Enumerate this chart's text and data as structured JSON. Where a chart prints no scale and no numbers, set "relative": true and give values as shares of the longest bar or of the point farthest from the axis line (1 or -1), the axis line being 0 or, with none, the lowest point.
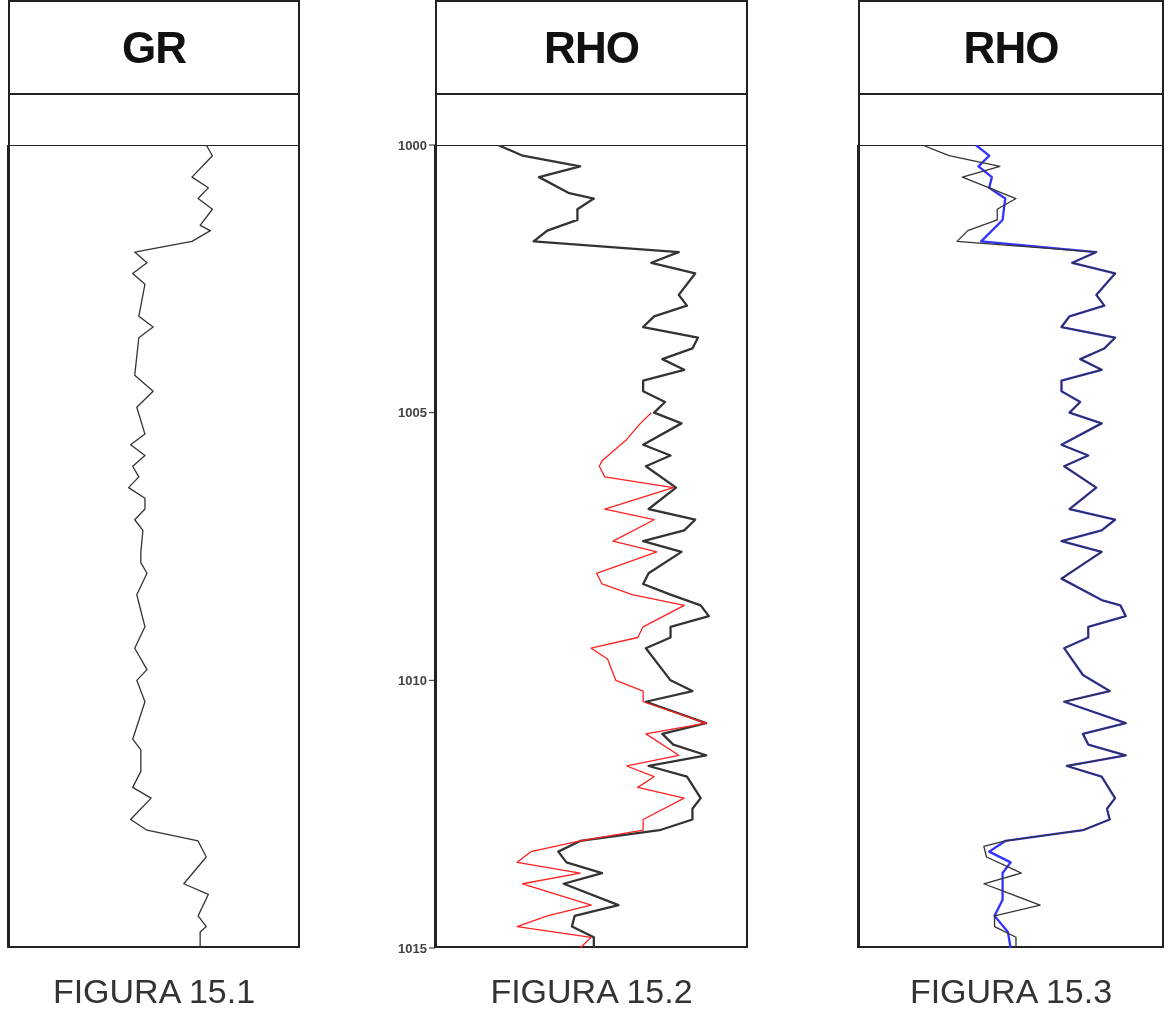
{
  "chart_data": [
    {
      "type": "line",
      "title": "GR",
      "annotations": [
        "FIGURA 15.1"
      ],
      "orientation": "horizontal",
      "relative": true,
      "ylim": [
        1015,
        1000
      ],
      "tick_labels": false,
      "series": [
        {
          "color": "#333333",
          "x": [
            1000.0,
            1000.2,
            1000.6,
            1000.8,
            1001.0,
            1001.2,
            1001.5,
            1001.6,
            1001.8,
            1002.0,
            1002.2,
            1002.4,
            1002.6,
            1003.2,
            1003.4,
            1003.6,
            1004.3,
            1004.6,
            1004.9,
            1005.4,
            1005.6,
            1005.8,
            1006.0,
            1006.2,
            1006.4,
            1006.6,
            1006.8,
            1007.0,
            1007.2,
            1007.6,
            1007.8,
            1008.0,
            1008.4,
            1008.7,
            1009.0,
            1009.4,
            1009.8,
            1010.0,
            1010.4,
            1011.1,
            1011.3,
            1011.7,
            1012.0,
            1012.2,
            1012.6,
            1012.8,
            1013.0,
            1013.3,
            1013.8,
            1014.0,
            1014.4,
            1014.6,
            1014.7,
            1015.0
          ],
          "values": [
            0.97,
            1.0,
            0.9,
            0.98,
            0.93,
            1.0,
            0.94,
            0.99,
            0.9,
            0.62,
            0.68,
            0.61,
            0.67,
            0.64,
            0.71,
            0.64,
            0.62,
            0.71,
            0.63,
            0.67,
            0.6,
            0.67,
            0.61,
            0.64,
            0.59,
            0.67,
            0.67,
            0.62,
            0.66,
            0.65,
            0.65,
            0.68,
            0.63,
            0.65,
            0.67,
            0.62,
            0.68,
            0.63,
            0.67,
            0.61,
            0.65,
            0.65,
            0.61,
            0.7,
            0.6,
            0.68,
            0.93,
            0.97,
            0.86,
            0.98,
            0.93,
            0.97,
            0.94,
            0.94
          ]
        }
      ]
    },
    {
      "type": "line",
      "title": "RHO",
      "annotations": [
        "FIGURA 15.2"
      ],
      "orientation": "horizontal",
      "relative": true,
      "ylim": [
        1015,
        1000
      ],
      "yticks": [
        1000,
        1005,
        1010,
        1015
      ],
      "tick_labels": "y",
      "series": [
        {
          "color": "#333333",
          "x": [
            1000.0,
            1000.2,
            1000.4,
            1000.6,
            1000.9,
            1001.0,
            1001.2,
            1001.4,
            1001.6,
            1001.8,
            1002.0,
            1002.2,
            1002.4,
            1002.8,
            1003.0,
            1003.2,
            1003.4,
            1003.6,
            1003.8,
            1004.0,
            1004.2,
            1004.4,
            1004.6,
            1004.8,
            1005.0,
            1005.2,
            1005.6,
            1005.8,
            1006.0,
            1006.4,
            1006.8,
            1007.0,
            1007.2,
            1007.4,
            1007.6,
            1008.0,
            1008.2,
            1008.4,
            1008.6,
            1008.8,
            1009.0,
            1009.2,
            1009.4,
            1009.8,
            1010.0,
            1010.2,
            1010.4,
            1010.8,
            1011.0,
            1011.2,
            1011.4,
            1011.6,
            1011.8,
            1012.2,
            1012.4,
            1012.6,
            1012.8,
            1013.0,
            1013.2,
            1013.4,
            1013.6,
            1013.8,
            1014.2,
            1014.4,
            1014.6,
            1014.8,
            1015.0
          ],
          "values": [
            0.23,
            0.32,
            0.53,
            0.38,
            0.49,
            0.58,
            0.52,
            0.52,
            0.41,
            0.36,
            0.89,
            0.79,
            0.95,
            0.89,
            0.92,
            0.8,
            0.76,
            0.96,
            0.94,
            0.83,
            0.91,
            0.76,
            0.76,
            0.84,
            0.8,
            0.9,
            0.76,
            0.86,
            0.77,
            0.88,
            0.78,
            0.95,
            0.91,
            0.76,
            0.9,
            0.78,
            0.76,
            0.86,
            0.97,
            1.0,
            0.86,
            0.86,
            0.77,
            0.83,
            0.86,
            0.94,
            0.77,
            0.99,
            0.83,
            0.87,
            0.99,
            0.78,
            0.92,
            0.97,
            0.94,
            0.94,
            0.82,
            0.53,
            0.45,
            0.48,
            0.61,
            0.47,
            0.67,
            0.51,
            0.5,
            0.58,
            0.58
          ]
        },
        {
          "color": "#ff2020",
          "x": [
            1005.0,
            1005.2,
            1005.5,
            1005.9,
            1006.0,
            1006.2,
            1006.4,
            1006.8,
            1007.0,
            1007.4,
            1007.6,
            1008.0,
            1008.2,
            1008.4,
            1008.6,
            1009.0,
            1009.2,
            1009.4,
            1009.6,
            1010.0,
            1010.2,
            1010.4,
            1010.8,
            1011.0,
            1011.4,
            1011.6,
            1011.8,
            1012.0,
            1012.2,
            1012.6,
            1012.8,
            1013.0,
            1013.2,
            1013.4,
            1013.6,
            1013.8,
            1014.2,
            1014.4,
            1014.6,
            1014.8,
            1015.0
          ],
          "values": [
            0.79,
            0.75,
            0.7,
            0.61,
            0.6,
            0.62,
            0.87,
            0.62,
            0.8,
            0.65,
            0.81,
            0.59,
            0.61,
            0.72,
            0.91,
            0.76,
            0.74,
            0.57,
            0.63,
            0.66,
            0.76,
            0.76,
            0.99,
            0.77,
            0.89,
            0.7,
            0.8,
            0.74,
            0.91,
            0.76,
            0.76,
            0.53,
            0.35,
            0.3,
            0.53,
            0.32,
            0.57,
            0.41,
            0.3,
            0.57,
            0.53
          ]
        }
      ]
    },
    {
      "type": "line",
      "title": "RHO",
      "annotations": [
        "FIGURA 15.3"
      ],
      "orientation": "horizontal",
      "relative": true,
      "ylim": [
        1015,
        1000
      ],
      "tick_labels": false,
      "series": [
        {
          "color": "#3333ff",
          "x": [
            1000.0,
            1000.2,
            1000.4,
            1000.6,
            1000.8,
            1001.0,
            1001.4,
            1001.8,
            1002.0,
            1002.2,
            1002.4,
            1002.8,
            1003.0,
            1003.2,
            1003.4,
            1003.6,
            1003.8,
            1004.0,
            1004.2,
            1004.4,
            1004.6,
            1004.8,
            1005.0,
            1005.2,
            1005.6,
            1005.8,
            1006.0,
            1006.4,
            1006.8,
            1007.0,
            1007.2,
            1007.4,
            1007.6,
            1008.1,
            1008.5,
            1008.6,
            1008.8,
            1009.0,
            1009.2,
            1009.4,
            1009.9,
            1010.2,
            1010.4,
            1010.8,
            1011.0,
            1011.2,
            1011.4,
            1011.6,
            1011.8,
            1012.2,
            1012.4,
            1012.6,
            1012.8,
            1013.0,
            1013.2,
            1013.4,
            1013.6,
            1014.1,
            1014.4,
            1014.7,
            1015.0
          ],
          "values": [
            0.44,
            0.49,
            0.45,
            0.5,
            0.49,
            0.55,
            0.54,
            0.46,
            0.89,
            0.8,
            0.96,
            0.89,
            0.92,
            0.79,
            0.76,
            0.96,
            0.92,
            0.83,
            0.91,
            0.76,
            0.76,
            0.83,
            0.79,
            0.91,
            0.76,
            0.86,
            0.77,
            0.89,
            0.79,
            0.96,
            0.91,
            0.76,
            0.91,
            0.76,
            0.91,
            0.98,
            1.0,
            0.86,
            0.86,
            0.77,
            0.84,
            0.94,
            0.77,
            1.0,
            0.84,
            0.86,
            1.0,
            0.78,
            0.91,
            0.96,
            0.93,
            0.94,
            0.84,
            0.55,
            0.49,
            0.57,
            0.54,
            0.54,
            0.51,
            0.56,
            0.57
          ]
        },
        {
          "color": "#333333",
          "x": [
            1000.0,
            1000.2,
            1000.4,
            1000.6,
            1001.0,
            1001.2,
            1001.4,
            1001.6,
            1001.8,
            1002.0,
            1002.2,
            1002.4,
            1002.8,
            1003.0,
            1003.2,
            1003.4,
            1003.6,
            1003.8,
            1004.0,
            1004.2,
            1004.4,
            1004.6,
            1004.8,
            1005.0,
            1005.2,
            1005.6,
            1005.8,
            1006.0,
            1006.4,
            1006.8,
            1007.0,
            1007.2,
            1007.4,
            1007.6,
            1008.1,
            1008.5,
            1008.6,
            1008.8,
            1009.0,
            1009.2,
            1009.4,
            1009.9,
            1010.2,
            1010.4,
            1010.8,
            1011.0,
            1011.2,
            1011.4,
            1011.6,
            1011.8,
            1012.2,
            1012.4,
            1012.6,
            1012.8,
            1013.0,
            1013.1,
            1013.3,
            1013.6,
            1013.8,
            1014.2,
            1014.4,
            1014.6,
            1014.8,
            1015.0
          ],
          "values": [
            0.24,
            0.34,
            0.53,
            0.39,
            0.59,
            0.52,
            0.52,
            0.41,
            0.37,
            0.89,
            0.8,
            0.96,
            0.89,
            0.92,
            0.79,
            0.76,
            0.96,
            0.92,
            0.83,
            0.91,
            0.76,
            0.76,
            0.83,
            0.79,
            0.91,
            0.76,
            0.86,
            0.77,
            0.89,
            0.79,
            0.96,
            0.91,
            0.76,
            0.91,
            0.76,
            0.91,
            0.98,
            1.0,
            0.86,
            0.86,
            0.77,
            0.84,
            0.94,
            0.77,
            1.0,
            0.84,
            0.86,
            1.0,
            0.78,
            0.91,
            0.96,
            0.93,
            0.94,
            0.84,
            0.55,
            0.47,
            0.48,
            0.61,
            0.47,
            0.68,
            0.51,
            0.51,
            0.59,
            0.59
          ]
        }
      ]
    }
  ]
}
